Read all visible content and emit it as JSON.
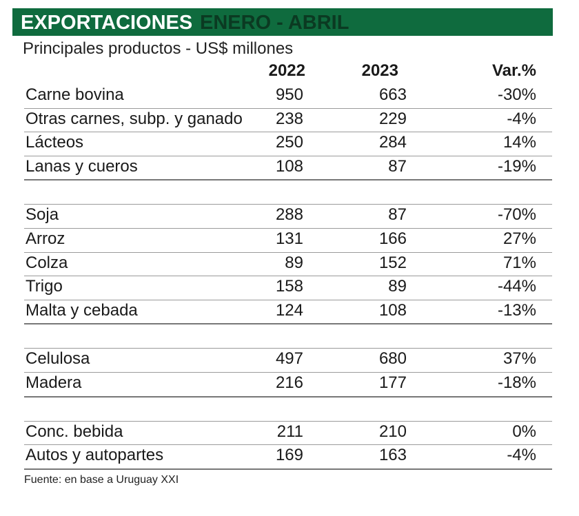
{
  "header": {
    "title": "EXPORTACIONES",
    "period": "ENERO - ABRIL",
    "subtitle": "Principales productos - US$ millones"
  },
  "table": {
    "columns": [
      "2022",
      "2023",
      "Var.%"
    ],
    "groups": [
      [
        [
          "Carne bovina",
          950,
          663,
          "-30%"
        ],
        [
          "Otras carnes, subp. y ganado",
          238,
          229,
          "-4%"
        ],
        [
          "Lácteos",
          250,
          284,
          "14%"
        ],
        [
          "Lanas y cueros",
          108,
          87,
          "-19%"
        ]
      ],
      [
        [
          "Soja",
          288,
          87,
          "-70%"
        ],
        [
          "Arroz",
          131,
          166,
          "27%"
        ],
        [
          "Colza",
          89,
          152,
          "71%"
        ],
        [
          "Trigo",
          158,
          89,
          "-44%"
        ],
        [
          "Malta y cebada",
          124,
          108,
          "-13%"
        ]
      ],
      [
        [
          "Celulosa",
          497,
          680,
          "37%"
        ],
        [
          "Madera",
          216,
          177,
          "-18%"
        ]
      ],
      [
        [
          "Conc. bebida",
          211,
          210,
          "0%"
        ],
        [
          "Autos y autopartes",
          169,
          163,
          "-4%"
        ]
      ]
    ]
  },
  "source": "Fuente: en base a Uruguay XXI"
}
